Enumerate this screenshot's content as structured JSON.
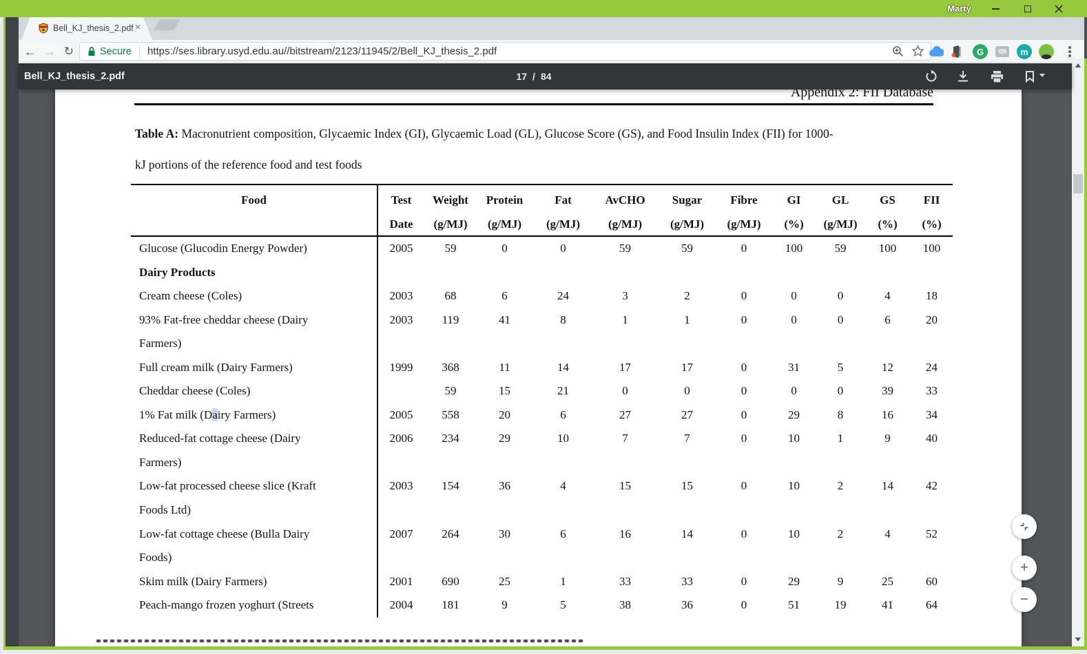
{
  "titlebar": {
    "profile_name": "Marty"
  },
  "tabbar": {
    "tab_title": "Bell_KJ_thesis_2.pdf"
  },
  "addressbar": {
    "security_label": "Secure",
    "url": "https://ses.library.usyd.edu.au//bitstream/2123/11945/2/Bell_KJ_thesis_2.pdf"
  },
  "extensions": {
    "items": [
      "cloud-extension",
      "door-extension",
      "grammarly-extension",
      "screenshot-extension",
      "mendeley-extension",
      "profile-avatar-extension"
    ]
  },
  "pdf_toolbar": {
    "doc_title": "Bell_KJ_thesis_2.pdf",
    "current_page": "17",
    "page_divider": "/",
    "total_pages": "84"
  },
  "zoom_controls": {
    "zoom_in_label": "+",
    "zoom_out_label": "−"
  },
  "colors": {
    "frame_green": "#97C93F",
    "secure_green": "#0B8043",
    "pdf_toolbar_dark": "#323639",
    "viewer_background": "#525659"
  },
  "document": {
    "appendix_header": "Appendix 2: FII Database",
    "caption_bold": "Table A:",
    "caption_rest": " Macronutrient composition, Glycaemic Index (GI), Glycaemic Load (GL), Glucose Score (GS), and Food Insulin Index (FII) for 1000-",
    "caption_line2": "kJ portions of the reference food and test foods",
    "table": {
      "headers": [
        {
          "l1": "Food",
          "l2": ""
        },
        {
          "l1": "Test",
          "l2": "Date"
        },
        {
          "l1": "Weight",
          "l2": "(g/MJ)"
        },
        {
          "l1": "Protein",
          "l2": "(g/MJ)"
        },
        {
          "l1": "Fat",
          "l2": "(g/MJ)"
        },
        {
          "l1": "AvCHO",
          "l2": "(g/MJ)"
        },
        {
          "l1": "Sugar",
          "l2": "(g/MJ)"
        },
        {
          "l1": "Fibre",
          "l2": "(g/MJ)"
        },
        {
          "l1": "GI",
          "l2": "(%)"
        },
        {
          "l1": "GL",
          "l2": "(g/MJ)"
        },
        {
          "l1": "GS",
          "l2": "(%)"
        },
        {
          "l1": "FII",
          "l2": "(%)"
        }
      ],
      "rows": [
        {
          "food": [
            "Glucose (Glucodin Energy Powder)"
          ],
          "values": [
            "2005",
            "59",
            "0",
            "0",
            "59",
            "59",
            "0",
            "100",
            "59",
            "100",
            "100"
          ]
        },
        {
          "food": [
            "Dairy Products"
          ],
          "bold": true,
          "values": [
            "",
            "",
            "",
            "",
            "",
            "",
            "",
            "",
            "",
            "",
            ""
          ]
        },
        {
          "food": [
            "Cream cheese (Coles)"
          ],
          "values": [
            "2003",
            "68",
            "6",
            "24",
            "3",
            "2",
            "0",
            "0",
            "0",
            "4",
            "18"
          ]
        },
        {
          "food": [
            "93% Fat-free cheddar cheese (Dairy",
            "Farmers)"
          ],
          "values": [
            "2003",
            "119",
            "41",
            "8",
            "1",
            "1",
            "0",
            "0",
            "0",
            "6",
            "20"
          ]
        },
        {
          "food": [
            "Full cream milk (Dairy Farmers)"
          ],
          "values": [
            "1999",
            "368",
            "11",
            "14",
            "17",
            "17",
            "0",
            "31",
            "5",
            "12",
            "24"
          ]
        },
        {
          "food": [
            "Cheddar cheese (Coles)"
          ],
          "values": [
            "",
            "59",
            "15",
            "21",
            "0",
            "0",
            "0",
            "0",
            "0",
            "39",
            "33"
          ]
        },
        {
          "food": [
            "1% Fat milk (Dairy Farmers)"
          ],
          "highlight": {
            "pre": "1% Fat milk (D",
            "hl": "a",
            "post": "iry Farmers)"
          },
          "values": [
            "2005",
            "558",
            "20",
            "6",
            "27",
            "27",
            "0",
            "29",
            "8",
            "16",
            "34"
          ]
        },
        {
          "food": [
            "Reduced-fat cottage cheese (Dairy",
            "Farmers)"
          ],
          "values": [
            "2006",
            "234",
            "29",
            "10",
            "7",
            "7",
            "0",
            "10",
            "1",
            "9",
            "40"
          ]
        },
        {
          "food": [
            "Low-fat processed cheese slice (Kraft",
            "Foods Ltd)"
          ],
          "values": [
            "2003",
            "154",
            "36",
            "4",
            "15",
            "15",
            "0",
            "10",
            "2",
            "14",
            "42"
          ]
        },
        {
          "food": [
            "Low-fat cottage cheese (Bulla Dairy",
            "Foods)"
          ],
          "values": [
            "2007",
            "264",
            "30",
            "6",
            "16",
            "14",
            "0",
            "10",
            "2",
            "4",
            "52"
          ]
        },
        {
          "food": [
            "Skim milk (Dairy Farmers)"
          ],
          "values": [
            "2001",
            "690",
            "25",
            "1",
            "33",
            "33",
            "0",
            "29",
            "9",
            "25",
            "60"
          ]
        },
        {
          "food": [
            "Peach-mango frozen yoghurt (Streets"
          ],
          "values": [
            "2004",
            "181",
            "9",
            "5",
            "38",
            "36",
            "0",
            "51",
            "19",
            "41",
            "64"
          ]
        }
      ]
    }
  }
}
